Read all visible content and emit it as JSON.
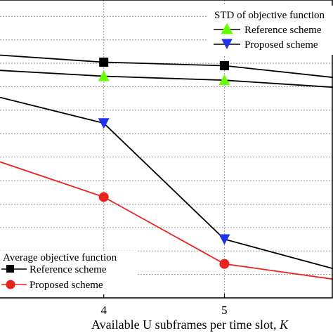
{
  "chart_data": {
    "type": "line",
    "xlabel": "Available U subframes per time slot, ",
    "xlabel_italic": "K",
    "x_ticks": [
      4,
      5
    ],
    "xlim": [
      3.14,
      5.9
    ],
    "ylim": [
      0,
      12.7
    ],
    "grid": true,
    "panels": [
      {
        "legend_title": "STD of objective function",
        "legend_position": "top-right",
        "series": [
          {
            "name": "Reference scheme",
            "color": "#000000",
            "marker": "triangle-up",
            "marker_color": "#66ff00",
            "x": [
              3.14,
              4,
              5,
              5.9
            ],
            "y": [
              9.7,
              9.45,
              9.28,
              8.98
            ],
            "marker_x": [
              4,
              5
            ],
            "marker_y": [
              9.45,
              9.28
            ]
          },
          {
            "name": "Proposed scheme",
            "color": "#000000",
            "marker": "triangle-down",
            "marker_color": "#2233ee",
            "x": [
              3.14,
              4,
              5,
              5.9
            ],
            "y": [
              8.55,
              7.45,
              2.5,
              1.25
            ],
            "marker_x": [
              4,
              5
            ],
            "marker_y": [
              7.45,
              2.5
            ]
          }
        ]
      },
      {
        "legend_title": "Average objective function",
        "legend_position": "bottom-left",
        "series": [
          {
            "name": "Reference scheme",
            "color": "#000000",
            "marker": "square",
            "marker_color": "#000000",
            "x": [
              3.14,
              4,
              5,
              5.9
            ],
            "y": [
              10.35,
              10.05,
              9.9,
              9.4
            ],
            "marker_x": [
              4,
              5
            ],
            "marker_y": [
              10.05,
              9.9
            ]
          },
          {
            "name": "Proposed scheme",
            "color": "#e8231e",
            "marker": "circle",
            "marker_color": "#e8231e",
            "x": [
              3.14,
              4,
              5,
              5.9
            ],
            "y": [
              5.8,
              4.3,
              1.45,
              0.8
            ],
            "marker_x": [
              4,
              5
            ],
            "marker_y": [
              4.3,
              1.45
            ]
          }
        ]
      }
    ]
  }
}
